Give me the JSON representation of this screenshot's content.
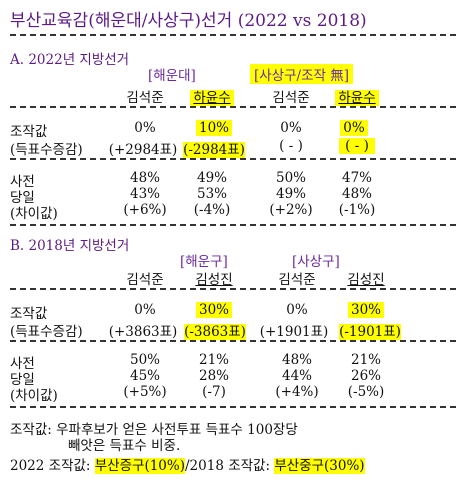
{
  "title": "부산교육감(해운대/사상구)선거 (2022 vs 2018)",
  "section_a": {
    "title": "A. 2022년 지방선거",
    "group1": "[해운대]",
    "group2": "[사상구/조작 無]",
    "candidates": [
      "김석준",
      "하윤수",
      "김석준",
      "하윤수"
    ],
    "row_manip_label": "조작값",
    "row_manip": [
      "0%",
      "10%",
      "0%",
      "0%"
    ],
    "row_votes_label": "(득표수증감)",
    "row_votes": [
      "(+2984표)",
      "(-2984표)",
      "( - )",
      "( - )"
    ],
    "row_pre_label": "사전",
    "row_pre": [
      "48%",
      "49%",
      "50%",
      "47%"
    ],
    "row_day_label": "당일",
    "row_day": [
      "43%",
      "53%",
      "49%",
      "48%"
    ],
    "row_diff_label": "(차이값)",
    "row_diff": [
      "(+6%)",
      "(-4%)",
      "(+2%)",
      "(-1%)"
    ]
  },
  "section_b": {
    "title": "B. 2018년 지방선거",
    "group1": "[해운구]",
    "group2": "[사상구]",
    "candidates": [
      "김석준",
      "김성진",
      "김석준",
      "김성진"
    ],
    "row_manip_label": "조작값",
    "row_manip": [
      "0%",
      "30%",
      "0%",
      "30%"
    ],
    "row_votes_label": "(득표수증감)",
    "row_votes": [
      "(+3863표)",
      "(-3863표)",
      "(+1901표)",
      "(-1901표)"
    ],
    "row_pre_label": "사전",
    "row_pre": [
      "50%",
      "21%",
      "48%",
      "21%"
    ],
    "row_day_label": "당일",
    "row_day": [
      "45%",
      "28%",
      "44%",
      "26%"
    ],
    "row_diff_label": "(차이값)",
    "row_diff": [
      "(+5%)",
      "(-7)",
      "(+4%)",
      "(-5%)"
    ]
  },
  "footer": {
    "line1": "조작값: 우파후보가 얻은 사전투표 득표수 100장당",
    "line2": "빼앗은 득표수 비중.",
    "line3_prefix": "2022 조작값:",
    "line3_hl1": "부산증구(10%)",
    "line3_mid": "/2018 조작값:",
    "line3_hl2": "부산중구(30%)"
  },
  "colors": {
    "title": "#5b1a86",
    "highlight": "#ffff00"
  }
}
